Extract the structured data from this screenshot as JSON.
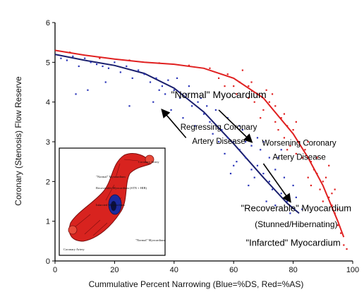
{
  "chart_data": {
    "type": "scatter",
    "title": "",
    "xlabel": "Cummulative Percent Narrowing (Blue=%DS, Red=%AS)",
    "ylabel": "Coronary (Stenosis) Flow Reserve",
    "xlim": [
      0,
      100
    ],
    "ylim": [
      0,
      6
    ],
    "x_ticks": [
      "0",
      "20",
      "40",
      "60",
      "80",
      "100"
    ],
    "y_ticks": [
      "0",
      "1",
      "2",
      "3",
      "4",
      "5",
      "6"
    ],
    "grid": false,
    "legend": "none",
    "colors": {
      "blue": "#2a35b8",
      "red": "#e02020",
      "blue_line": "#1a1f6e"
    },
    "series": [
      {
        "color": "blue",
        "curve": [
          [
            0,
            5.2
          ],
          [
            10,
            5.05
          ],
          [
            20,
            4.92
          ],
          [
            30,
            4.72
          ],
          [
            40,
            4.35
          ],
          [
            50,
            3.75
          ],
          [
            60,
            2.95
          ],
          [
            70,
            2.1
          ],
          [
            78,
            1.45
          ],
          [
            82,
            1.2
          ]
        ],
        "scatter": [
          [
            2,
            5.1
          ],
          [
            4,
            5.05
          ],
          [
            6,
            5.15
          ],
          [
            8,
            4.9
          ],
          [
            10,
            5.1
          ],
          [
            12,
            5.0
          ],
          [
            14,
            4.95
          ],
          [
            16,
            4.9
          ],
          [
            18,
            4.85
          ],
          [
            20,
            5.0
          ],
          [
            22,
            4.75
          ],
          [
            24,
            4.9
          ],
          [
            26,
            4.6
          ],
          [
            28,
            4.8
          ],
          [
            30,
            4.7
          ],
          [
            32,
            4.5
          ],
          [
            34,
            4.6
          ],
          [
            36,
            4.4
          ],
          [
            38,
            4.55
          ],
          [
            40,
            4.3
          ],
          [
            42,
            4.1
          ],
          [
            44,
            4.2
          ],
          [
            46,
            3.9
          ],
          [
            48,
            4.0
          ],
          [
            50,
            3.7
          ],
          [
            52,
            3.5
          ],
          [
            54,
            3.8
          ],
          [
            56,
            3.3
          ],
          [
            58,
            3.1
          ],
          [
            60,
            3.0
          ],
          [
            62,
            2.8
          ],
          [
            64,
            2.6
          ],
          [
            66,
            2.9
          ],
          [
            68,
            2.4
          ],
          [
            70,
            2.2
          ],
          [
            72,
            2.0
          ],
          [
            74,
            2.3
          ],
          [
            76,
            1.7
          ],
          [
            78,
            1.5
          ],
          [
            80,
            1.9
          ],
          [
            7,
            4.2
          ],
          [
            11,
            4.3
          ],
          [
            17,
            4.5
          ],
          [
            25,
            3.9
          ],
          [
            33,
            4.0
          ],
          [
            37,
            4.2
          ],
          [
            43,
            3.6
          ],
          [
            47,
            3.4
          ],
          [
            53,
            3.2
          ],
          [
            57,
            2.7
          ],
          [
            61,
            2.5
          ],
          [
            63,
            3.3
          ],
          [
            67,
            2.1
          ],
          [
            69,
            2.8
          ],
          [
            73,
            1.8
          ],
          [
            75,
            2.6
          ],
          [
            77,
            2.1
          ],
          [
            79,
            1.2
          ],
          [
            81,
            1.6
          ],
          [
            83,
            1.3
          ],
          [
            45,
            4.4
          ],
          [
            49,
            4.1
          ],
          [
            51,
            3.9
          ],
          [
            55,
            3.0
          ],
          [
            59,
            2.2
          ],
          [
            65,
            1.9
          ],
          [
            71,
            1.5
          ],
          [
            39,
            3.8
          ],
          [
            41,
            4.6
          ],
          [
            35,
            4.3
          ],
          [
            58,
            3.6
          ],
          [
            62,
            3.4
          ],
          [
            66,
            2.3
          ],
          [
            70,
            3.0
          ],
          [
            74,
            1.4
          ],
          [
            76,
            2.8
          ],
          [
            72,
            2.6
          ],
          [
            68,
            3.1
          ],
          [
            64,
            3.0
          ],
          [
            60,
            2.4
          ]
        ]
      },
      {
        "color": "red",
        "curve": [
          [
            0,
            5.3
          ],
          [
            10,
            5.18
          ],
          [
            20,
            5.08
          ],
          [
            30,
            5.0
          ],
          [
            40,
            4.95
          ],
          [
            50,
            4.85
          ],
          [
            60,
            4.6
          ],
          [
            70,
            4.1
          ],
          [
            80,
            3.2
          ],
          [
            85,
            2.6
          ],
          [
            90,
            1.9
          ],
          [
            95,
            1.0
          ],
          [
            97,
            0.6
          ]
        ],
        "scatter": [
          [
            5,
            5.25
          ],
          [
            15,
            5.1
          ],
          [
            25,
            5.05
          ],
          [
            35,
            4.98
          ],
          [
            45,
            4.92
          ],
          [
            52,
            4.85
          ],
          [
            58,
            4.7
          ],
          [
            62,
            4.5
          ],
          [
            65,
            4.4
          ],
          [
            68,
            4.2
          ],
          [
            72,
            4.0
          ],
          [
            74,
            3.9
          ],
          [
            76,
            3.6
          ],
          [
            78,
            3.4
          ],
          [
            80,
            3.3
          ],
          [
            82,
            3.0
          ],
          [
            84,
            2.8
          ],
          [
            86,
            2.5
          ],
          [
            88,
            2.2
          ],
          [
            90,
            2.0
          ],
          [
            92,
            1.6
          ],
          [
            93,
            1.4
          ],
          [
            94,
            1.2
          ],
          [
            95,
            0.9
          ],
          [
            96,
            0.7
          ],
          [
            97,
            0.4
          ],
          [
            98,
            0.3
          ],
          [
            55,
            4.6
          ],
          [
            60,
            4.4
          ],
          [
            66,
            4.5
          ],
          [
            70,
            3.8
          ],
          [
            73,
            4.2
          ],
          [
            75,
            3.3
          ],
          [
            77,
            3.7
          ],
          [
            79,
            2.9
          ],
          [
            81,
            3.5
          ],
          [
            83,
            2.6
          ],
          [
            85,
            3.0
          ],
          [
            87,
            2.3
          ],
          [
            89,
            1.8
          ],
          [
            91,
            2.1
          ],
          [
            93,
            1.7
          ],
          [
            95,
            1.3
          ],
          [
            63,
            4.8
          ],
          [
            67,
            4.0
          ],
          [
            71,
            4.3
          ],
          [
            77,
            3.1
          ],
          [
            81,
            2.7
          ],
          [
            85,
            2.1
          ],
          [
            88,
            2.6
          ],
          [
            57,
            4.4
          ],
          [
            61,
            4.2
          ],
          [
            65,
            4.1
          ],
          [
            69,
            3.6
          ],
          [
            74,
            3.5
          ],
          [
            78,
            2.8
          ],
          [
            86,
            1.9
          ],
          [
            90,
            1.5
          ],
          [
            92,
            2.4
          ],
          [
            94,
            1.8
          ]
        ]
      }
    ],
    "annotations": [
      {
        "text": "\"Normal\" Myocardium",
        "x": 55,
        "y": 4.1,
        "size": 14
      },
      {
        "text": "Regressing Coronary",
        "x": 55,
        "y": 3.3,
        "size": 11.5
      },
      {
        "text": "Artery Disease",
        "x": 55,
        "y": 2.95,
        "size": 11.5
      },
      {
        "text": "Worsening Coronary",
        "x": 82,
        "y": 2.9,
        "size": 11.5
      },
      {
        "text": "Artery Disease",
        "x": 82,
        "y": 2.55,
        "size": 11.5
      },
      {
        "text": "\"Recoverable\" Myocardium",
        "x": 81,
        "y": 1.25,
        "size": 13
      },
      {
        "text": "(Stunned/Hibernating)",
        "x": 81,
        "y": 0.85,
        "size": 12
      },
      {
        "text": "\"Infarcted\" Myocardium",
        "x": 80,
        "y": 0.38,
        "size": 13
      }
    ],
    "arrows": [
      {
        "from": [
          44,
          3.1
        ],
        "to": [
          36,
          3.8
        ]
      },
      {
        "from": [
          55,
          3.8
        ],
        "to": [
          66,
          3.0
        ]
      },
      {
        "from": [
          70,
          2.45
        ],
        "to": [
          79,
          1.5
        ]
      }
    ]
  },
  "inset": {
    "labels": {
      "top": "Coronary Artery",
      "normal": "\"Normal\" Myocardium",
      "recoverable": "Recoverable Myocardium (STN + HIB)",
      "infarcted": "Infarcted Myocardium",
      "bottom_left": "Coronary Artery",
      "bottom_right": "\"Normal\" Myocardium"
    }
  }
}
